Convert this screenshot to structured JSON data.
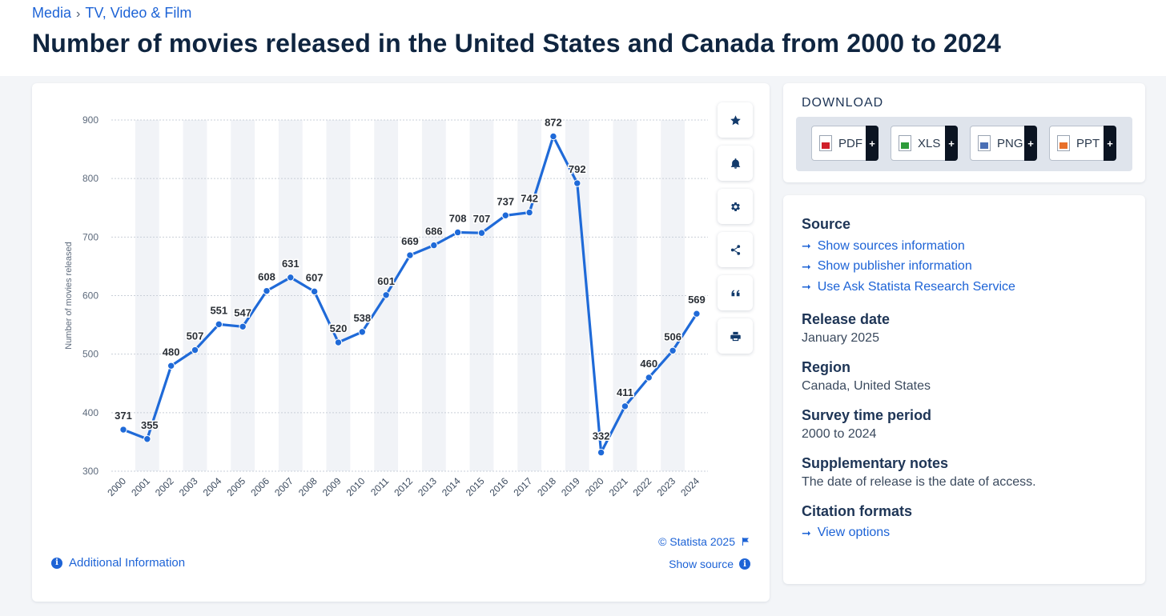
{
  "breadcrumb": {
    "first": "Media",
    "separator": "›",
    "second": "TV, Video & Film"
  },
  "page_title": "Number of movies released in the United States and Canada from 2000 to 2024",
  "toolbar": [
    "star-icon",
    "bell-icon",
    "gear-icon",
    "share-icon",
    "quote-icon",
    "print-icon"
  ],
  "chart_footer": {
    "additional_info": "Additional Information",
    "copyright": "© Statista 2025",
    "show_source": "Show source",
    "info_glyph": "i"
  },
  "download": {
    "label": "DOWNLOAD",
    "plus": "+",
    "buttons": [
      {
        "label": "PDF",
        "color": "#d0202a"
      },
      {
        "label": "XLS",
        "color": "#2e9b3a"
      },
      {
        "label": "PNG",
        "color": "#4a6fb5"
      },
      {
        "label": "PPT",
        "color": "#e8702a"
      }
    ]
  },
  "info": {
    "source_heading": "Source",
    "source_links": [
      "Show sources information",
      "Show publisher information",
      "Use Ask Statista Research Service"
    ],
    "release_heading": "Release date",
    "release_value": "January 2025",
    "region_heading": "Region",
    "region_value": "Canada, United States",
    "survey_heading": "Survey time period",
    "survey_value": "2000 to 2024",
    "notes_heading": "Supplementary notes",
    "notes_value": "The date of release is the date of access.",
    "citation_heading": "Citation formats",
    "citation_link": "View options",
    "arrow": "➞"
  },
  "colors": {
    "accent": "#1d63d6",
    "line": "#1f6ad8",
    "title": "#0f2540"
  },
  "chart_data": {
    "type": "line",
    "title": "Number of movies released in the United States and Canada from 2000 to 2024",
    "xlabel": "",
    "ylabel": "Number of movies released",
    "ylim": [
      300,
      900
    ],
    "yticks": [
      300,
      400,
      500,
      600,
      700,
      800,
      900
    ],
    "grid": true,
    "categories": [
      "2000",
      "2001",
      "2002",
      "2003",
      "2004",
      "2005",
      "2006",
      "2007",
      "2008",
      "2009",
      "2010",
      "2011",
      "2012",
      "2013",
      "2014",
      "2015",
      "2016",
      "2017",
      "2018",
      "2019",
      "2020",
      "2021",
      "2022",
      "2023",
      "2024"
    ],
    "series": [
      {
        "name": "Number of movies released",
        "values": [
          371,
          355,
          480,
          507,
          551,
          547,
          608,
          631,
          607,
          520,
          538,
          601,
          669,
          686,
          708,
          707,
          737,
          742,
          872,
          792,
          332,
          411,
          460,
          506,
          569
        ]
      }
    ]
  }
}
